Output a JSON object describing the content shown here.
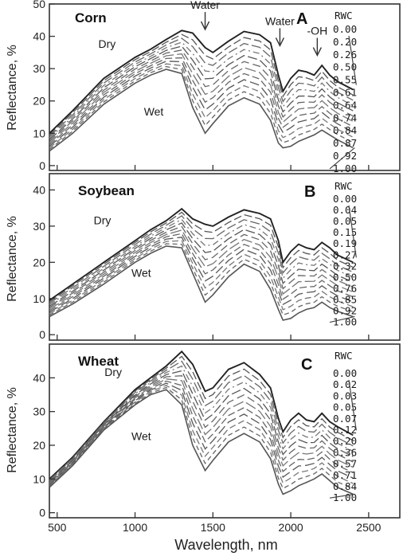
{
  "chart_data": [
    {
      "type": "line",
      "panel_name": "Corn",
      "panel_letter": "A",
      "ylabel": "Reflectance, %",
      "xlim": [
        450,
        2700
      ],
      "ylim": [
        0,
        50
      ],
      "yticks": [
        0,
        10,
        20,
        30,
        40,
        50
      ],
      "grid": false,
      "legend_title": "RWC",
      "legend_entries": [
        "0.00",
        "0.20",
        "0.26",
        "0.50",
        "0.55",
        "0.61",
        "0.64",
        "0.74",
        "0.84",
        "0.87",
        "0.92",
        "1.00"
      ],
      "annotations": [
        {
          "text": "Water",
          "x": 1450,
          "y": 48.5
        },
        {
          "text": "Water",
          "x": 1930,
          "y": 43.5
        },
        {
          "text": "-OH",
          "x": 2170,
          "y": 40.5
        },
        {
          "text": "Dry",
          "x": 820,
          "y": 36.5
        },
        {
          "text": "Wet",
          "x": 1120,
          "y": 15.5
        }
      ],
      "series": [
        {
          "name": "0.00",
          "x": [
            450,
            600,
            800,
            1000,
            1100,
            1200,
            1300,
            1370,
            1450,
            1500,
            1600,
            1700,
            1800,
            1870,
            1920,
            1950,
            2000,
            2050,
            2100,
            2150,
            2200,
            2250,
            2300,
            2400
          ],
          "values": [
            10,
            17,
            27,
            33.5,
            36,
            39,
            41.8,
            41,
            36.5,
            35,
            38.5,
            41.5,
            40.5,
            38,
            28,
            23,
            27,
            29.5,
            29,
            28,
            31,
            28,
            26,
            23.5
          ]
        },
        {
          "name": "1.00",
          "x": [
            450,
            600,
            800,
            1000,
            1100,
            1200,
            1300,
            1370,
            1450,
            1500,
            1600,
            1700,
            1800,
            1870,
            1920,
            1950,
            2000,
            2050,
            2100,
            2150,
            2200,
            2250,
            2300,
            2400
          ],
          "values": [
            4.5,
            10,
            19,
            25.5,
            28,
            29.8,
            28.5,
            18,
            10,
            13,
            18.5,
            21,
            19,
            14,
            7,
            5.5,
            6,
            7.5,
            8.5,
            9.5,
            11,
            9.5,
            8,
            5.5
          ]
        }
      ]
    },
    {
      "type": "line",
      "panel_name": "Soybean",
      "panel_letter": "B",
      "ylabel": "Reflectance, %",
      "xlim": [
        450,
        2700
      ],
      "ylim": [
        0,
        50
      ],
      "yticks": [
        0,
        10,
        20,
        30,
        40
      ],
      "grid": false,
      "legend_title": "RWC",
      "legend_entries": [
        "0.00",
        "0.04",
        "0.05",
        "0.15",
        "0.19",
        "0.27",
        "0.32",
        "0.50",
        "0.76",
        "0.85",
        "0.92",
        "1.00"
      ],
      "annotations": [
        {
          "text": "Dry",
          "x": 790,
          "y": 30.5
        },
        {
          "text": "Wet",
          "x": 1040,
          "y": 16
        }
      ],
      "series": [
        {
          "name": "0.00",
          "x": [
            450,
            600,
            800,
            1000,
            1100,
            1200,
            1300,
            1370,
            1450,
            1500,
            1600,
            1700,
            1800,
            1870,
            1920,
            1950,
            2000,
            2050,
            2100,
            2150,
            2200,
            2250,
            2300,
            2400
          ],
          "values": [
            9.5,
            14,
            20,
            26,
            29,
            31.5,
            34.8,
            32,
            30.5,
            30,
            32.5,
            34.5,
            33.5,
            32,
            26,
            20,
            23,
            25,
            24,
            23.5,
            25.5,
            24,
            22,
            20
          ]
        },
        {
          "name": "1.00",
          "x": [
            450,
            600,
            800,
            1000,
            1100,
            1200,
            1300,
            1370,
            1450,
            1500,
            1600,
            1700,
            1800,
            1870,
            1920,
            1950,
            2000,
            2050,
            2100,
            2150,
            2200,
            2250,
            2300,
            2400
          ],
          "values": [
            5,
            8.5,
            14,
            20,
            22.5,
            24.5,
            24,
            17,
            9,
            11,
            16,
            19.5,
            17.5,
            12.5,
            7,
            4,
            4.5,
            6,
            7,
            7.5,
            9,
            7.5,
            6.5,
            5
          ]
        }
      ]
    },
    {
      "type": "line",
      "panel_name": "Wheat",
      "panel_letter": "C",
      "ylabel": "Reflectance, %",
      "xlabel": "Wavelength, nm",
      "xlim": [
        450,
        2700
      ],
      "ylim": [
        0,
        50
      ],
      "yticks": [
        0,
        10,
        20,
        30,
        40
      ],
      "xticks": [
        500,
        1000,
        1500,
        2000,
        2500
      ],
      "grid": false,
      "legend_title": "RWC",
      "legend_entries": [
        "0.00",
        "0.02",
        "0.03",
        "0.05",
        "0.07",
        "0.12",
        "0.20",
        "0.36",
        "0.57",
        "0.71",
        "0.84",
        "1.00"
      ],
      "annotations": [
        {
          "text": "Dry",
          "x": 860,
          "y": 40.5
        },
        {
          "text": "Wet",
          "x": 1040,
          "y": 21.5
        }
      ],
      "series": [
        {
          "name": "0.00",
          "x": [
            450,
            600,
            800,
            1000,
            1100,
            1200,
            1300,
            1370,
            1450,
            1500,
            1600,
            1700,
            1800,
            1870,
            1920,
            1950,
            2000,
            2050,
            2100,
            2150,
            2200,
            2250,
            2300,
            2400
          ],
          "values": [
            10,
            16.5,
            27,
            36.5,
            40,
            43.5,
            47.8,
            44,
            36,
            37,
            42.5,
            44.5,
            41,
            37,
            28,
            24,
            27.5,
            29.5,
            27.5,
            27,
            29.5,
            27,
            25.5,
            23
          ]
        },
        {
          "name": "1.00",
          "x": [
            450,
            600,
            800,
            1000,
            1100,
            1200,
            1300,
            1370,
            1450,
            1500,
            1600,
            1700,
            1800,
            1870,
            1920,
            1950,
            2000,
            2050,
            2100,
            2150,
            2200,
            2250,
            2300,
            2400
          ],
          "values": [
            7.5,
            14,
            24.5,
            32,
            35,
            36.5,
            32,
            20,
            12.5,
            15.5,
            21,
            23.5,
            21,
            16,
            8.5,
            5.5,
            6.5,
            8,
            9,
            10,
            11.5,
            9.5,
            7.5,
            5.5
          ]
        }
      ]
    }
  ]
}
